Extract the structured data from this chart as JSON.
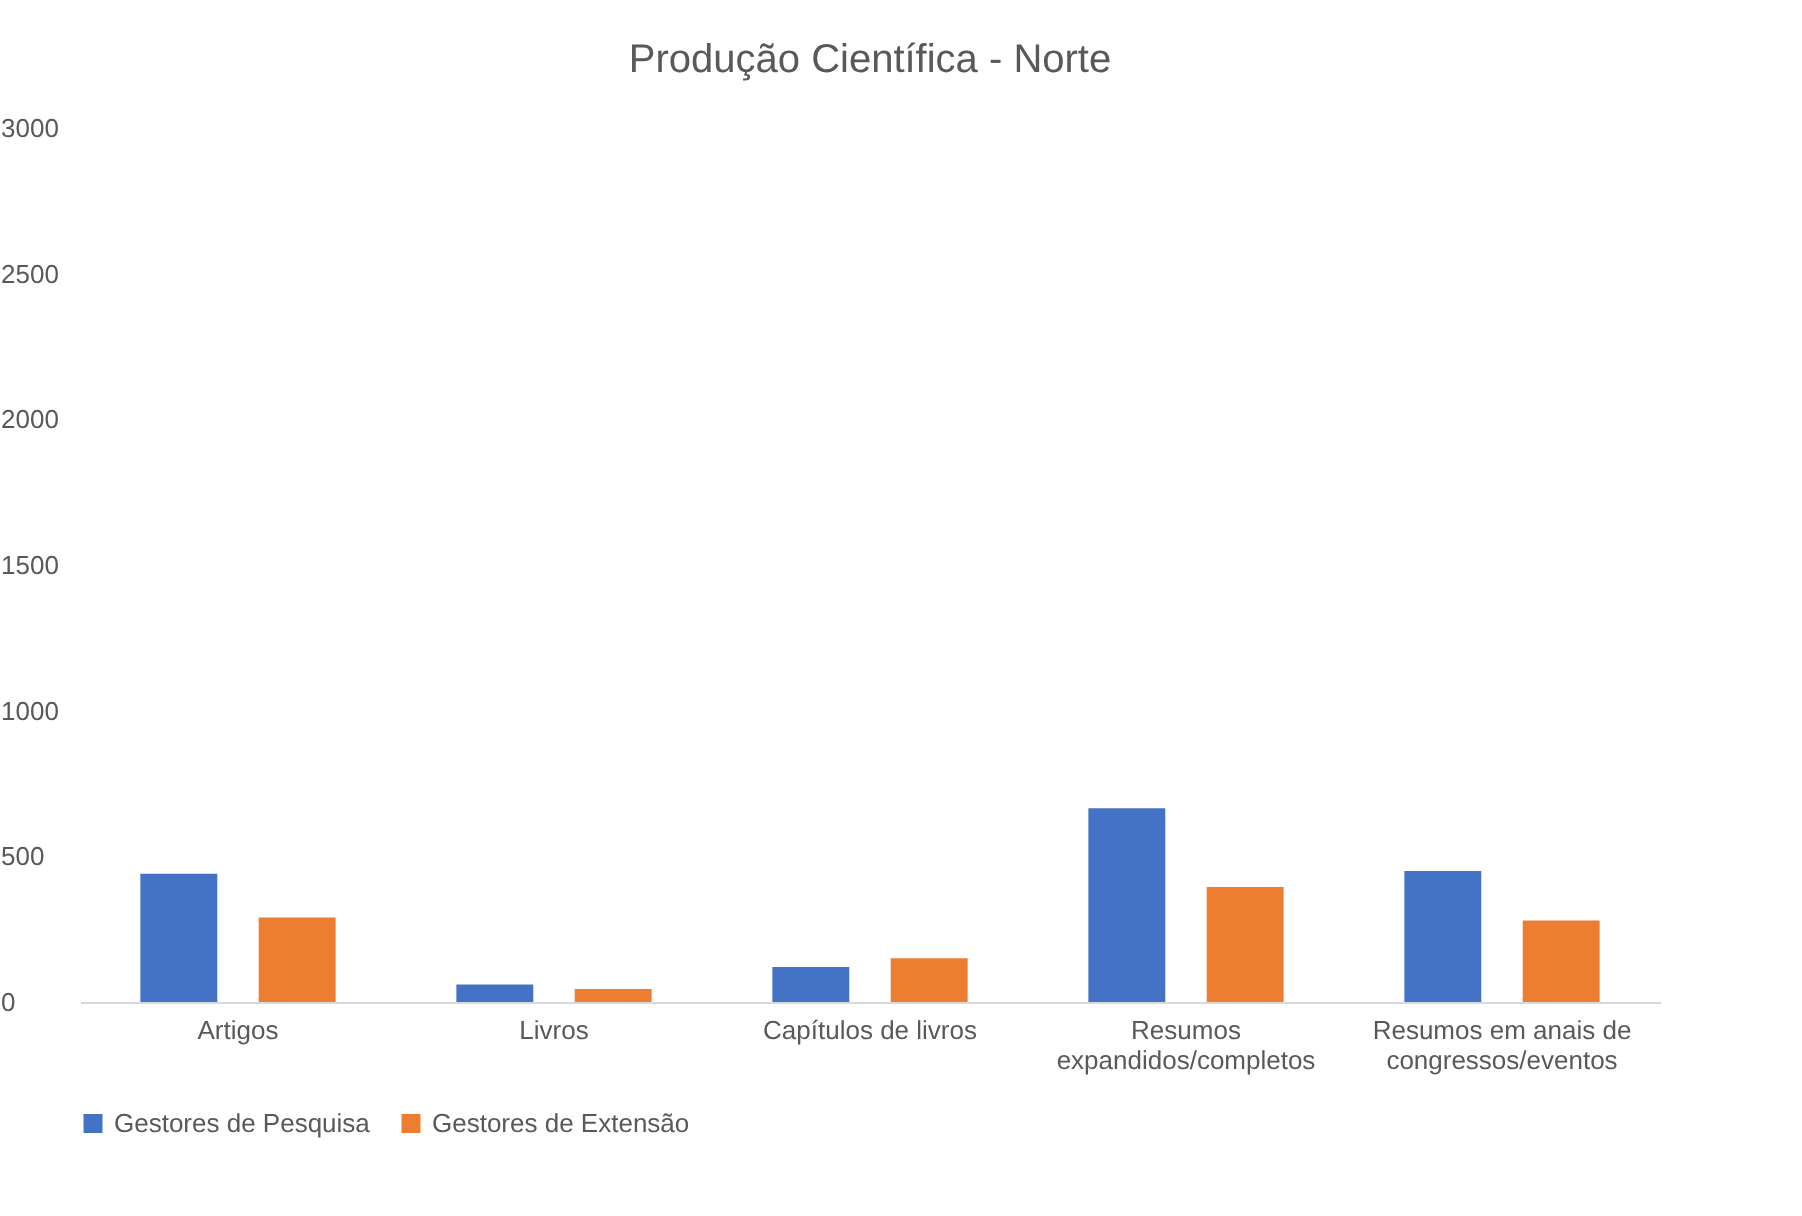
{
  "chart_data": {
    "type": "bar",
    "title": "Produção Científica - Norte",
    "categories": [
      "Artigos",
      "Livros",
      "Capítulos de livros",
      "Resumos expandidos/completos",
      "Resumos em anais de congressos/eventos"
    ],
    "series": [
      {
        "name": "Gestores de Pesquisa",
        "color": "#4472c4",
        "values": [
          440,
          60,
          120,
          665,
          450
        ]
      },
      {
        "name": "Gestores de Extensão",
        "color": "#ed7d31",
        "values": [
          290,
          45,
          150,
          395,
          280
        ]
      }
    ],
    "ylim": [
      0,
      3000
    ],
    "yticks": [
      0,
      500,
      1000,
      1500,
      2000,
      2500,
      3000
    ],
    "grid": false,
    "legend": "bottom"
  }
}
